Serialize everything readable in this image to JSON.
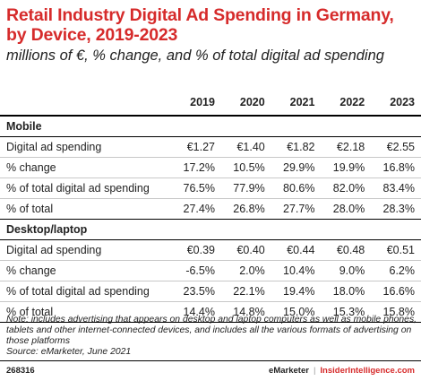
{
  "chart_data": {
    "type": "table",
    "title": "Retail Industry Digital Ad Spending in Germany, by Device, 2019-2023",
    "subtitle": "millions of €, % change, and % of total digital ad spending",
    "columns": [
      "2019",
      "2020",
      "2021",
      "2022",
      "2023"
    ],
    "sections": [
      {
        "name": "Mobile",
        "rows": [
          {
            "label": "Digital ad spending",
            "values": [
              "€1.27",
              "€1.40",
              "€1.82",
              "€2.18",
              "€2.55"
            ]
          },
          {
            "label": "% change",
            "values": [
              "17.2%",
              "10.5%",
              "29.9%",
              "19.9%",
              "16.8%"
            ]
          },
          {
            "label": "% of total digital ad spending",
            "values": [
              "76.5%",
              "77.9%",
              "80.6%",
              "82.0%",
              "83.4%"
            ]
          },
          {
            "label": "% of total",
            "values": [
              "27.4%",
              "26.8%",
              "27.7%",
              "28.0%",
              "28.3%"
            ]
          }
        ]
      },
      {
        "name": "Desktop/laptop",
        "rows": [
          {
            "label": "Digital ad spending",
            "values": [
              "€0.39",
              "€0.40",
              "€0.44",
              "€0.48",
              "€0.51"
            ]
          },
          {
            "label": "% change",
            "values": [
              "-6.5%",
              "2.0%",
              "10.4%",
              "9.0%",
              "6.2%"
            ]
          },
          {
            "label": "% of total digital ad spending",
            "values": [
              "23.5%",
              "22.1%",
              "19.4%",
              "18.0%",
              "16.6%"
            ]
          },
          {
            "label": "% of total",
            "values": [
              "14.4%",
              "14.8%",
              "15.0%",
              "15.3%",
              "15.8%"
            ]
          }
        ]
      }
    ]
  },
  "note": "Note: includes advertising that appears on desktop and laptop computers as well as mobile phones, tablets and other internet-connected devices, and includes all the various formats of advertising on those platforms",
  "source": "Source: eMarketer, June 2021",
  "footer": {
    "id": "268316",
    "brand": "eMarketer",
    "separator": "|",
    "brand2": "InsiderIntelligence.com"
  },
  "colors": {
    "title": "#d62b2b",
    "accent": "#d62b2b"
  }
}
